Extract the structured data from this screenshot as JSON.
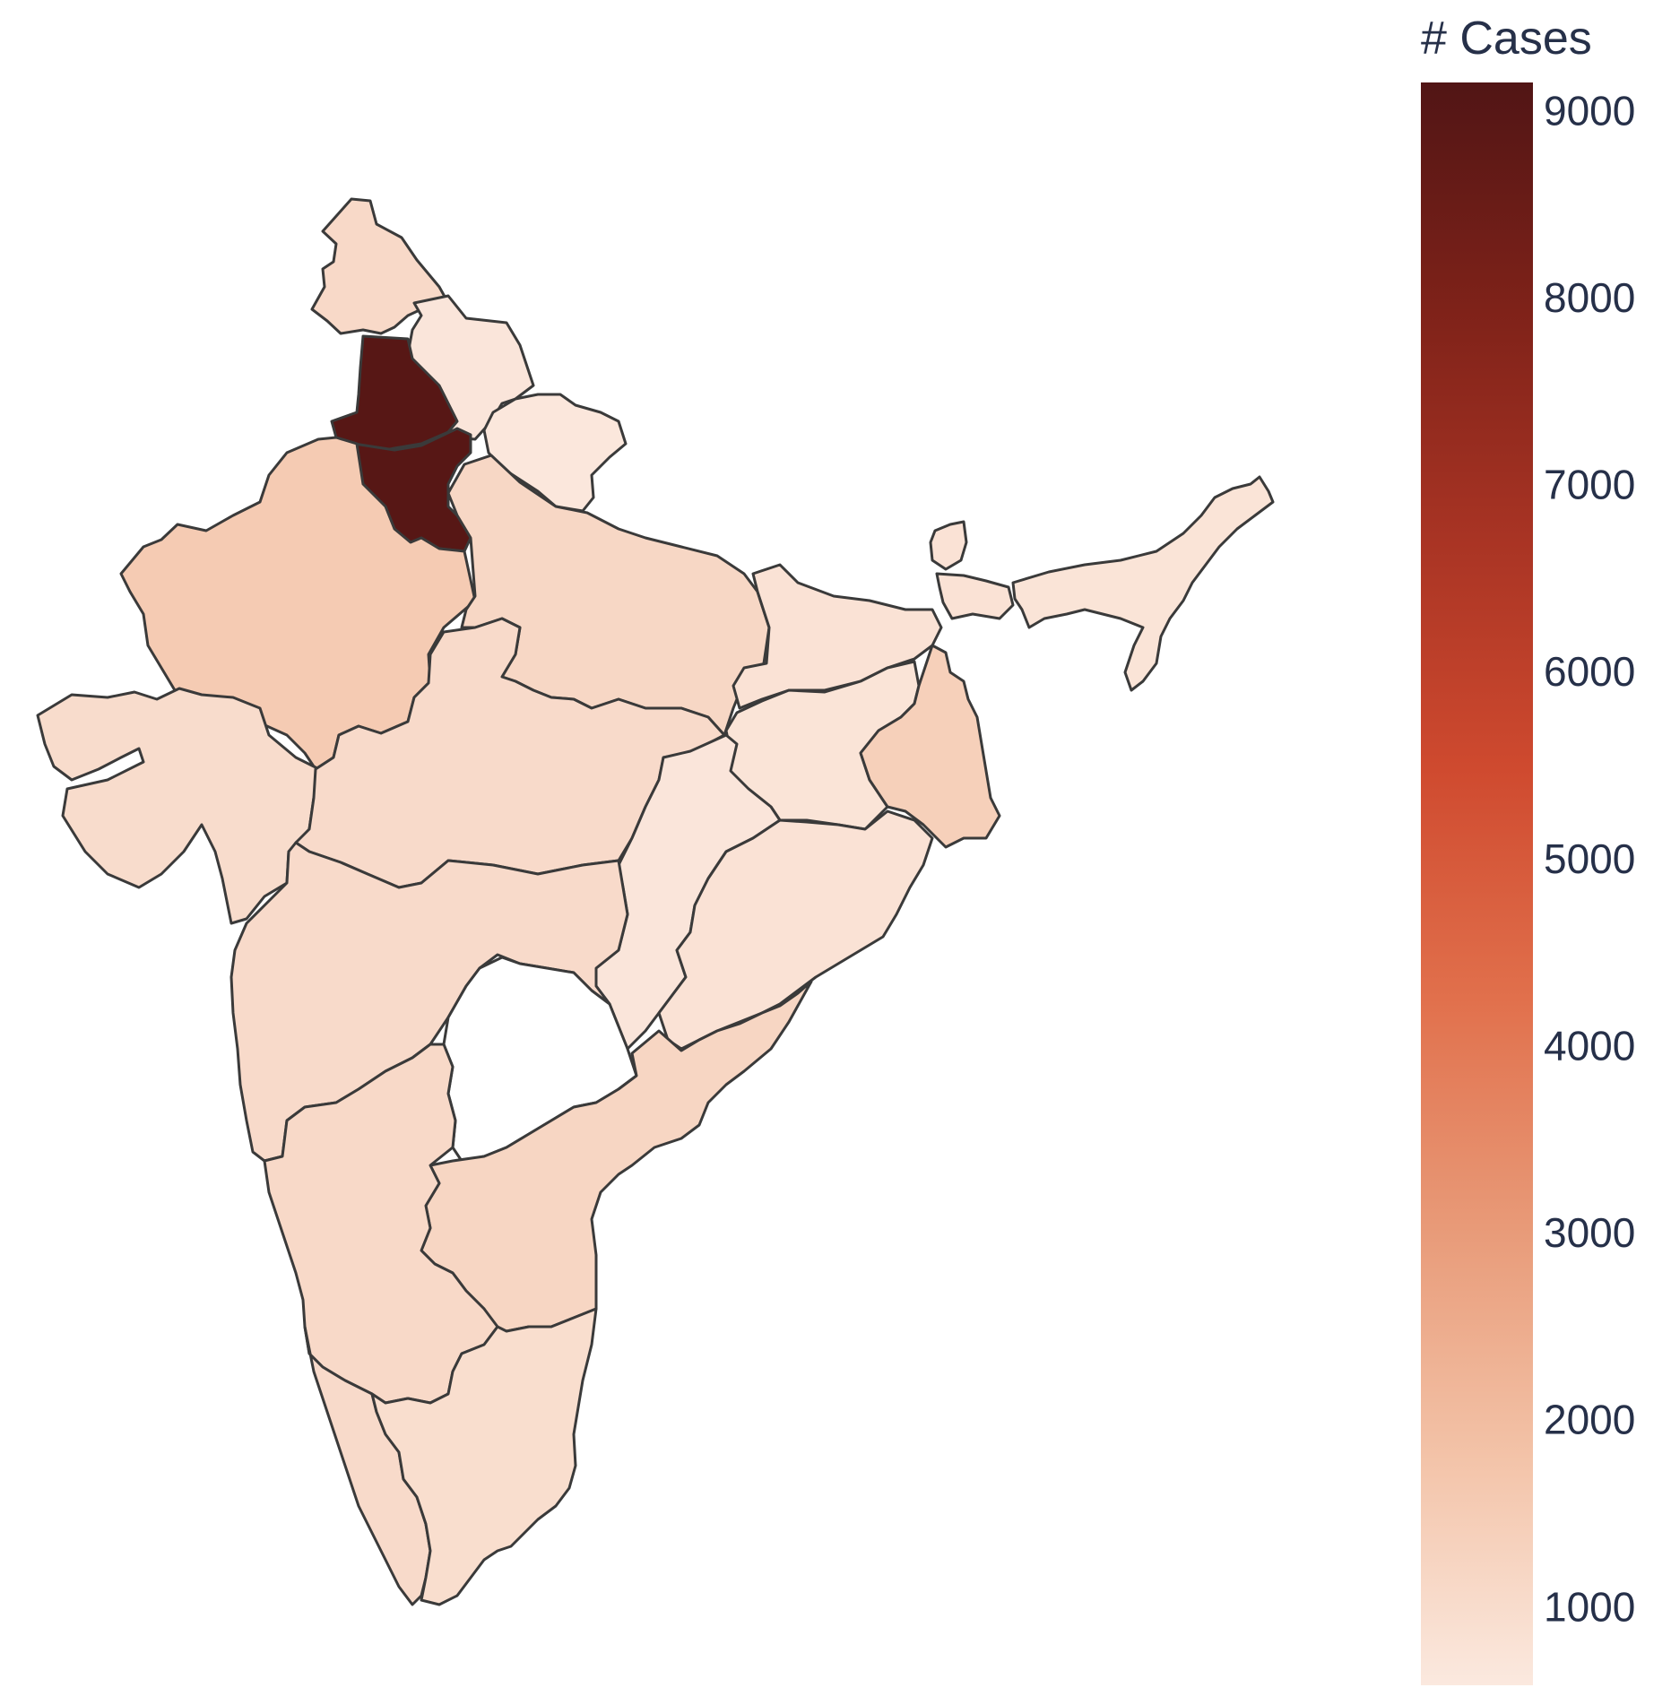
{
  "chart_data": {
    "type": "choropleth",
    "colorbar": {
      "title": "# Cases",
      "range": [
        580,
        9150
      ],
      "ticks": [
        {
          "label": "9000",
          "value": 9000
        },
        {
          "label": "8000",
          "value": 8000
        },
        {
          "label": "7000",
          "value": 7000
        },
        {
          "label": "6000",
          "value": 6000
        },
        {
          "label": "5000",
          "value": 5000
        },
        {
          "label": "4000",
          "value": 4000
        },
        {
          "label": "3000",
          "value": 3000
        },
        {
          "label": "2000",
          "value": 2000
        },
        {
          "label": "1000",
          "value": 1000
        }
      ],
      "colorscale": [
        "#fbe9df",
        "#f3c3a8",
        "#e89a78",
        "#e1704c",
        "#cf4a2f",
        "#a93424",
        "#7f2219",
        "#511515"
      ]
    },
    "regions": [
      {
        "id": "ladakh-kashmir",
        "value": 1100
      },
      {
        "id": "himachal",
        "value": 700
      },
      {
        "id": "punjab",
        "value": 9000
      },
      {
        "id": "haryana",
        "value": 9000
      },
      {
        "id": "uttarakhand",
        "value": 650
      },
      {
        "id": "rajasthan",
        "value": 1550
      },
      {
        "id": "uttar-pradesh",
        "value": 1150
      },
      {
        "id": "gujarat",
        "value": 1000
      },
      {
        "id": "madhya-pradesh",
        "value": 1050
      },
      {
        "id": "bihar",
        "value": 800
      },
      {
        "id": "jharkhand",
        "value": 750
      },
      {
        "id": "west-bengal",
        "value": 1400
      },
      {
        "id": "sikkim",
        "value": 800
      },
      {
        "id": "northeast",
        "value": 750
      },
      {
        "id": "chhattisgarh",
        "value": 700
      },
      {
        "id": "odisha",
        "value": 800
      },
      {
        "id": "maharashtra",
        "value": 1050
      },
      {
        "id": "andhra-pradesh",
        "value": 1200
      },
      {
        "id": "karnataka",
        "value": 1100
      },
      {
        "id": "kerala",
        "value": 1050
      },
      {
        "id": "tamil-nadu",
        "value": 950
      }
    ],
    "no_data_regions": [
      "telangana"
    ]
  }
}
